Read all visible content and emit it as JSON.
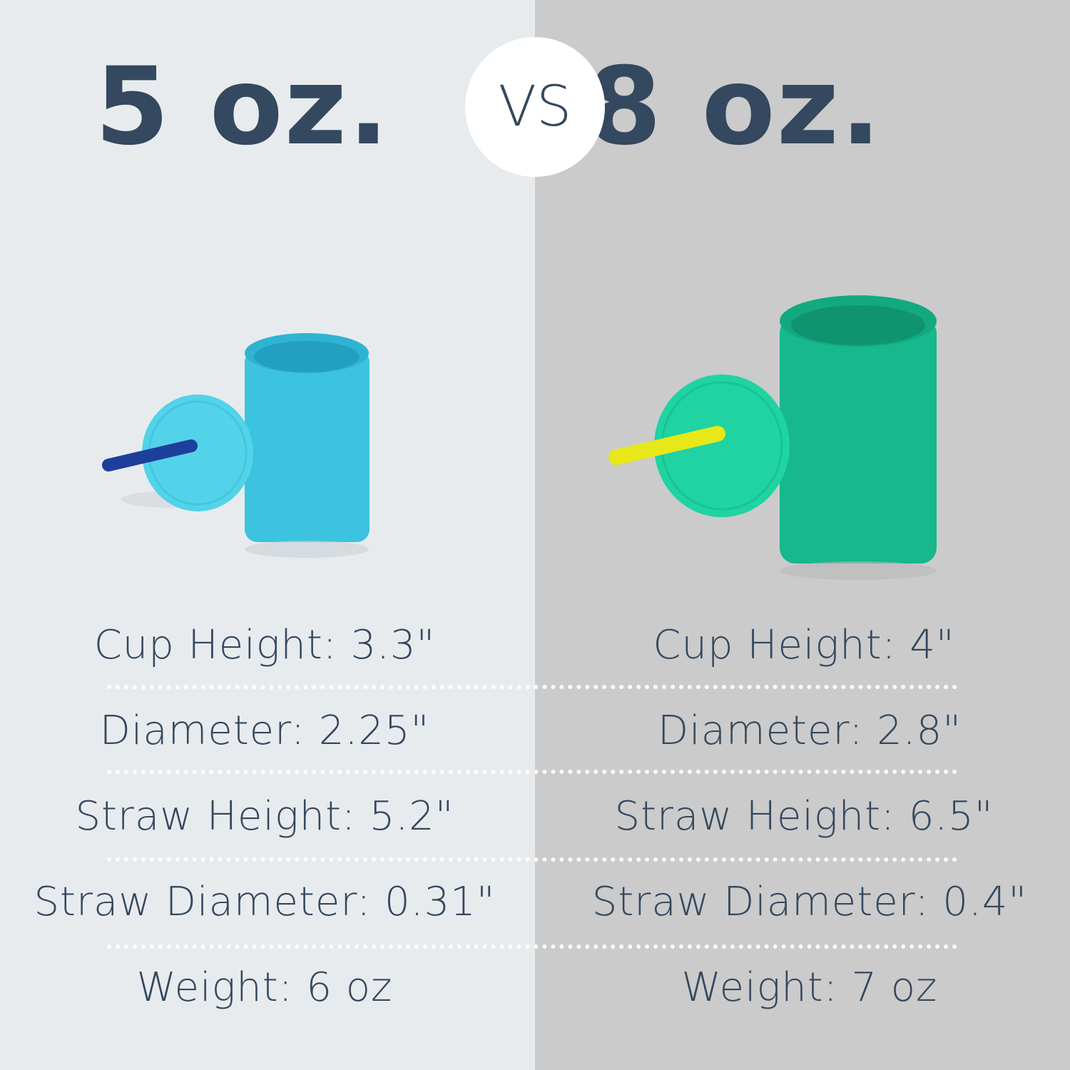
{
  "comparison": {
    "vs_label": "VS",
    "left": {
      "title": "5 oz.",
      "cup_color": "#3cc3df",
      "lid_color": "#52d3ea",
      "straw_color": "#1d3f9c",
      "specs": [
        {
          "label": "Cup Height: 3.3\""
        },
        {
          "label": "Diameter: 2.25\""
        },
        {
          "label": "Straw Height: 5.2\""
        },
        {
          "label": "Straw Diameter: 0.31\""
        },
        {
          "label": "Weight: 6 oz"
        }
      ]
    },
    "right": {
      "title": "8 oz.",
      "cup_color": "#16b88c",
      "lid_color": "#1fd3a2",
      "straw_color": "#e6e81a",
      "specs": [
        {
          "label": "Cup Height: 4\""
        },
        {
          "label": "Diameter: 2.8\""
        },
        {
          "label": "Straw Height: 6.5\""
        },
        {
          "label": "Straw Diameter: 0.4\""
        },
        {
          "label": "Weight: 7 oz"
        }
      ]
    },
    "colors": {
      "text": "#34485f",
      "left_bg": "#e8ebee",
      "right_bg": "#cbcbcb"
    }
  }
}
